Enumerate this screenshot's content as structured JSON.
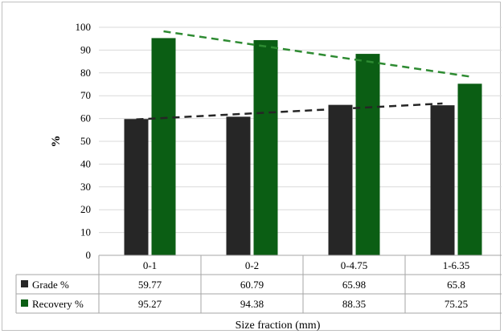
{
  "chart_data": {
    "type": "bar",
    "categories": [
      "0-1",
      "0-2",
      "0-4.75",
      "1-6.35"
    ],
    "series": [
      {
        "name": "Grade %",
        "values": [
          59.77,
          60.79,
          65.98,
          65.8
        ],
        "color": "#262626"
      },
      {
        "name": "Recovery %",
        "values": [
          95.27,
          94.38,
          88.35,
          75.25
        ],
        "color": "#0b5e14"
      }
    ],
    "trendlines": [
      {
        "series": "Grade %",
        "style": "dashed",
        "color": "#262626"
      },
      {
        "series": "Recovery %",
        "style": "dashed",
        "color": "#2e8b32"
      }
    ],
    "ylabel": "%",
    "xlabel": "Size fraction (mm)",
    "ylim": [
      0,
      100
    ],
    "yticks": [
      0,
      10,
      20,
      30,
      40,
      50,
      60,
      70,
      80,
      90,
      100
    ],
    "grid": true,
    "data_table": true
  }
}
